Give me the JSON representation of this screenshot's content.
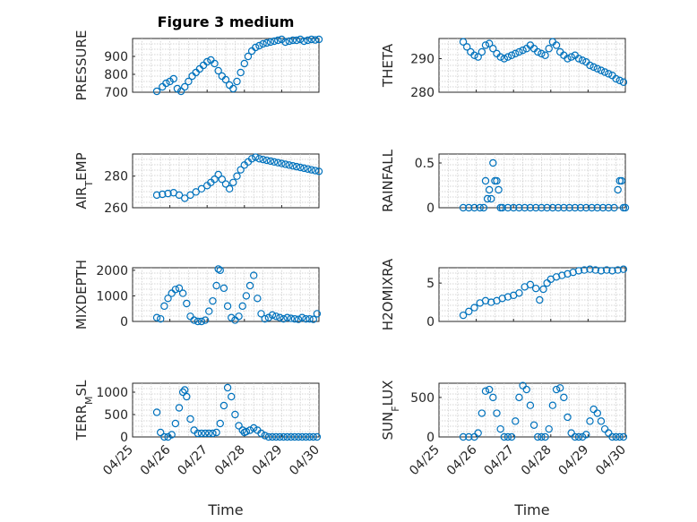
{
  "chart_data": [
    {
      "type": "scatter",
      "title": "Figure 3 medium",
      "xlabel": "",
      "ylabel": "PRESSURE",
      "xlim": [
        "04/25",
        "04/30"
      ],
      "ylim": [
        700,
        1000
      ],
      "yticks": [
        700,
        800,
        900
      ],
      "xticklabels": [],
      "grid": "on",
      "series": [
        {
          "x": [
            25.65,
            25.8,
            25.9,
            26.0,
            26.1,
            26.2,
            26.3,
            26.4,
            26.5,
            26.6,
            26.7,
            26.8,
            26.9,
            27.0,
            27.1,
            27.2,
            27.3,
            27.4,
            27.5,
            27.6,
            27.7,
            27.8,
            27.9,
            28.0,
            28.1,
            28.2,
            28.3,
            28.4,
            28.5,
            28.6,
            28.7,
            28.8,
            28.9,
            29.0,
            29.1,
            29.2,
            29.3,
            29.4,
            29.5,
            29.6,
            29.7,
            29.8,
            29.9,
            30.0
          ],
          "y": [
            705,
            730,
            750,
            760,
            775,
            720,
            705,
            730,
            760,
            790,
            810,
            830,
            850,
            870,
            880,
            860,
            820,
            790,
            770,
            740,
            720,
            760,
            810,
            860,
            900,
            930,
            950,
            960,
            970,
            975,
            980,
            985,
            990,
            995,
            980,
            985,
            990,
            990,
            995,
            985,
            990,
            995,
            992,
            995
          ]
        }
      ]
    },
    {
      "type": "scatter",
      "title": "",
      "xlabel": "",
      "ylabel": "THETA",
      "xlim": [
        "04/25",
        "04/30"
      ],
      "ylim": [
        280,
        296
      ],
      "yticks": [
        280,
        290
      ],
      "xticklabels": [],
      "grid": "on",
      "series": [
        {
          "x": [
            25.65,
            25.75,
            25.85,
            25.95,
            26.05,
            26.15,
            26.25,
            26.35,
            26.45,
            26.55,
            26.65,
            26.75,
            26.85,
            26.95,
            27.05,
            27.15,
            27.25,
            27.35,
            27.45,
            27.55,
            27.65,
            27.75,
            27.85,
            27.95,
            28.05,
            28.15,
            28.25,
            28.35,
            28.45,
            28.55,
            28.65,
            28.75,
            28.85,
            28.95,
            29.05,
            29.15,
            29.25,
            29.35,
            29.45,
            29.55,
            29.65,
            29.75,
            29.85,
            29.95
          ],
          "y": [
            295,
            293.5,
            292,
            291,
            290.5,
            292,
            294,
            294.5,
            293,
            291.5,
            290.5,
            290,
            290.5,
            291,
            291.5,
            292,
            292.5,
            293,
            294,
            293,
            292,
            291.5,
            291,
            293,
            295,
            294,
            292,
            291,
            290,
            290.5,
            291,
            290,
            289.5,
            289,
            288,
            287.5,
            287,
            286.5,
            286,
            285.5,
            285,
            284,
            283.5,
            283
          ]
        }
      ]
    },
    {
      "type": "scatter",
      "title": "",
      "xlabel": "",
      "ylabel": "AIR_TEMP",
      "xlim": [
        "04/25",
        "04/30"
      ],
      "ylim": [
        260,
        294
      ],
      "yticks": [
        260,
        280
      ],
      "xticklabels": [],
      "grid": "on",
      "series": [
        {
          "x": [
            25.65,
            25.8,
            25.95,
            26.1,
            26.25,
            26.4,
            26.55,
            26.7,
            26.85,
            27.0,
            27.1,
            27.2,
            27.3,
            27.4,
            27.5,
            27.6,
            27.7,
            27.8,
            27.9,
            28.0,
            28.1,
            28.2,
            28.3,
            28.4,
            28.5,
            28.6,
            28.7,
            28.8,
            28.9,
            29.0,
            29.1,
            29.2,
            29.3,
            29.4,
            29.5,
            29.6,
            29.7,
            29.8,
            29.9,
            30.0
          ],
          "y": [
            268,
            268.5,
            269,
            269.5,
            268,
            266,
            268,
            270,
            272,
            274,
            276,
            278,
            281,
            278,
            275,
            272,
            276,
            280,
            284,
            287,
            289,
            291,
            292,
            291,
            290.5,
            290,
            289.5,
            289,
            288.5,
            288,
            287.5,
            287,
            286.5,
            286,
            285.5,
            285,
            284.5,
            284,
            283.5,
            283
          ]
        }
      ]
    },
    {
      "type": "scatter",
      "title": "",
      "xlabel": "",
      "ylabel": "RAINFALL",
      "xlim": [
        "04/25",
        "04/30"
      ],
      "ylim": [
        0,
        0.6
      ],
      "yticks": [
        0,
        0.5
      ],
      "xticklabels": [],
      "grid": "on",
      "series": [
        {
          "x": [
            25.65,
            25.8,
            25.95,
            26.1,
            26.2,
            26.25,
            26.3,
            26.35,
            26.4,
            26.45,
            26.5,
            26.55,
            26.6,
            26.65,
            26.7,
            26.85,
            27.0,
            27.15,
            27.3,
            27.45,
            27.6,
            27.75,
            27.9,
            28.05,
            28.2,
            28.35,
            28.5,
            28.65,
            28.8,
            28.95,
            29.1,
            29.25,
            29.4,
            29.55,
            29.7,
            29.8,
            29.85,
            29.9,
            29.95,
            30.0
          ],
          "y": [
            0,
            0,
            0,
            0,
            0,
            0.3,
            0.1,
            0.2,
            0.1,
            0.5,
            0.3,
            0.3,
            0.2,
            0,
            0,
            0,
            0,
            0,
            0,
            0,
            0,
            0,
            0,
            0,
            0,
            0,
            0,
            0,
            0,
            0,
            0,
            0,
            0,
            0,
            0,
            0.2,
            0.3,
            0.3,
            0,
            0
          ]
        }
      ]
    },
    {
      "type": "scatter",
      "title": "",
      "xlabel": "",
      "ylabel": "MIXDEPTH",
      "xlim": [
        "04/25",
        "04/30"
      ],
      "ylim": [
        0,
        2100
      ],
      "yticks": [
        0,
        1000,
        2000
      ],
      "xticklabels": [],
      "grid": "on",
      "series": [
        {
          "x": [
            25.65,
            25.75,
            25.85,
            25.95,
            26.05,
            26.15,
            26.25,
            26.35,
            26.45,
            26.55,
            26.65,
            26.75,
            26.85,
            26.95,
            27.05,
            27.15,
            27.25,
            27.3,
            27.35,
            27.45,
            27.55,
            27.65,
            27.75,
            27.85,
            27.95,
            28.05,
            28.15,
            28.25,
            28.35,
            28.45,
            28.55,
            28.65,
            28.75,
            28.85,
            28.95,
            29.05,
            29.15,
            29.25,
            29.35,
            29.45,
            29.55,
            29.65,
            29.75,
            29.85,
            29.95
          ],
          "y": [
            150,
            100,
            600,
            900,
            1100,
            1250,
            1300,
            1100,
            700,
            200,
            50,
            0,
            0,
            50,
            400,
            800,
            1400,
            2050,
            2000,
            1300,
            600,
            150,
            50,
            200,
            600,
            1000,
            1400,
            1800,
            900,
            300,
            100,
            150,
            250,
            200,
            150,
            100,
            150,
            120,
            100,
            80,
            150,
            100,
            100,
            80,
            300
          ]
        }
      ]
    },
    {
      "type": "scatter",
      "title": "",
      "xlabel": "",
      "ylabel": "H2OMIXRA",
      "xlim": [
        "04/25",
        "04/30"
      ],
      "ylim": [
        0,
        7
      ],
      "yticks": [
        0,
        5
      ],
      "xticklabels": [],
      "grid": "on",
      "series": [
        {
          "x": [
            25.65,
            25.8,
            25.95,
            26.1,
            26.25,
            26.4,
            26.55,
            26.7,
            26.85,
            27.0,
            27.15,
            27.3,
            27.45,
            27.6,
            27.7,
            27.8,
            27.9,
            28.0,
            28.15,
            28.3,
            28.45,
            28.6,
            28.75,
            28.9,
            29.05,
            29.2,
            29.35,
            29.5,
            29.65,
            29.8,
            29.95
          ],
          "y": [
            0.8,
            1.3,
            1.8,
            2.4,
            2.7,
            2.5,
            2.7,
            3.0,
            3.2,
            3.4,
            3.7,
            4.5,
            4.8,
            4.3,
            2.8,
            4.2,
            5.0,
            5.5,
            5.8,
            6.0,
            6.2,
            6.4,
            6.6,
            6.7,
            6.8,
            6.7,
            6.6,
            6.7,
            6.6,
            6.7,
            6.8
          ]
        }
      ]
    },
    {
      "type": "scatter",
      "title": "",
      "xlabel": "Time",
      "ylabel": "TERR_MSL",
      "xlim": [
        "04/25",
        "04/30"
      ],
      "ylim": [
        0,
        1200
      ],
      "yticks": [
        0,
        500,
        1000
      ],
      "xticklabels": [
        "04/25",
        "04/26",
        "04/27",
        "04/28",
        "04/29",
        "04/30"
      ],
      "grid": "on",
      "series": [
        {
          "x": [
            25.65,
            25.75,
            25.85,
            25.95,
            26.05,
            26.15,
            26.25,
            26.35,
            26.4,
            26.45,
            26.55,
            26.65,
            26.75,
            26.85,
            26.95,
            27.05,
            27.15,
            27.25,
            27.35,
            27.45,
            27.55,
            27.65,
            27.75,
            27.85,
            27.95,
            28.0,
            28.05,
            28.15,
            28.25,
            28.35,
            28.45,
            28.55,
            28.65,
            28.75,
            28.85,
            28.95,
            29.05,
            29.15,
            29.25,
            29.35,
            29.45,
            29.55,
            29.65,
            29.75,
            29.85,
            29.95
          ],
          "y": [
            550,
            100,
            0,
            0,
            50,
            300,
            650,
            1000,
            1050,
            900,
            400,
            150,
            80,
            80,
            80,
            80,
            80,
            100,
            300,
            700,
            1100,
            900,
            500,
            250,
            150,
            100,
            120,
            150,
            200,
            150,
            80,
            30,
            0,
            0,
            0,
            0,
            0,
            0,
            0,
            0,
            0,
            0,
            0,
            0,
            0,
            0
          ]
        }
      ]
    },
    {
      "type": "scatter",
      "title": "",
      "xlabel": "Time",
      "ylabel": "SUN_FLUX",
      "xlim": [
        "04/25",
        "04/30"
      ],
      "ylim": [
        0,
        680
      ],
      "yticks": [
        0,
        500
      ],
      "xticklabels": [
        "04/25",
        "04/26",
        "04/27",
        "04/28",
        "04/29",
        "04/30"
      ],
      "grid": "on",
      "series": [
        {
          "x": [
            25.65,
            25.8,
            25.95,
            26.05,
            26.15,
            26.25,
            26.35,
            26.45,
            26.55,
            26.65,
            26.75,
            26.85,
            26.95,
            27.05,
            27.15,
            27.25,
            27.35,
            27.45,
            27.55,
            27.65,
            27.75,
            27.85,
            27.95,
            28.05,
            28.15,
            28.25,
            28.35,
            28.45,
            28.55,
            28.65,
            28.75,
            28.85,
            28.95,
            29.05,
            29.15,
            29.25,
            29.35,
            29.45,
            29.55,
            29.65,
            29.75,
            29.85,
            29.95
          ],
          "y": [
            0,
            0,
            0,
            50,
            300,
            580,
            600,
            500,
            300,
            100,
            0,
            0,
            0,
            200,
            500,
            650,
            600,
            400,
            150,
            0,
            0,
            0,
            100,
            400,
            600,
            620,
            500,
            250,
            50,
            0,
            0,
            0,
            30,
            200,
            350,
            300,
            200,
            100,
            50,
            0,
            0,
            0,
            0
          ]
        }
      ]
    }
  ],
  "colors": {
    "marker": "#0072BD",
    "axis": "#262626",
    "grid": "#c8c8c8"
  }
}
